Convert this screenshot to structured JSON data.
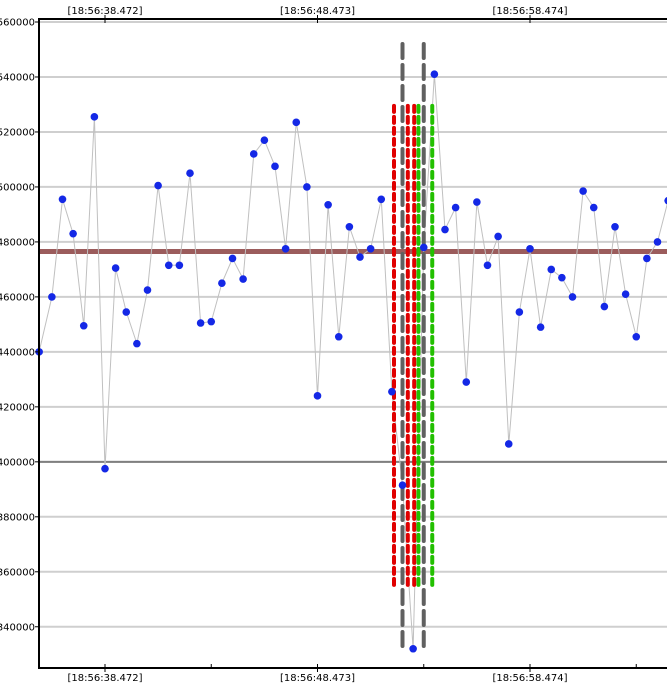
{
  "chart_data": {
    "type": "scatter",
    "title": "",
    "xlabel": "",
    "ylabel": "",
    "ylim": [
      325000,
      560000
    ],
    "yticks": [
      340000,
      360000,
      380000,
      400000,
      420000,
      440000,
      460000,
      480000,
      500000,
      520000,
      540000,
      560000
    ],
    "ytick_labels": [
      "340000",
      "360000",
      "380000",
      "400000",
      "420000",
      "440000",
      "460000",
      "480000",
      "500000",
      "520000",
      "540000",
      "560000"
    ],
    "x_time_labels": [
      "[18:56:38.472]",
      "[18:56:48.473]",
      "[18:56:58.474]"
    ],
    "x_unit": "seconds",
    "xlim": [
      -3.1,
      26.5
    ],
    "x_label_positions": [
      0,
      10,
      20
    ],
    "x_minor_ticks": [
      5,
      15,
      25
    ],
    "grid": true,
    "reference_lines": [
      {
        "name": "",
        "y": 476500,
        "color": "#9b5c5c",
        "style": "solid-thick"
      },
      {
        "name": "",
        "y": 400000,
        "color": "#808080",
        "style": "solid"
      }
    ],
    "series": [
      {
        "name": "",
        "color": "#1428e6",
        "line_color": "#c0c0c0",
        "points": [
          [
            -3.1,
            440000
          ],
          [
            -2.5,
            460000
          ],
          [
            -2.0,
            495500
          ],
          [
            -1.5,
            483000
          ],
          [
            -1.0,
            449500
          ],
          [
            -0.5,
            525500
          ],
          [
            0.0,
            397500
          ],
          [
            0.5,
            470500
          ],
          [
            1.0,
            454500
          ],
          [
            1.5,
            443000
          ],
          [
            2.0,
            462500
          ],
          [
            2.5,
            500500
          ],
          [
            3.0,
            471500
          ],
          [
            3.5,
            471500
          ],
          [
            4.0,
            505000
          ],
          [
            4.5,
            450500
          ],
          [
            5.0,
            451000
          ],
          [
            5.5,
            465000
          ],
          [
            6.0,
            474000
          ],
          [
            6.5,
            466500
          ],
          [
            7.0,
            512000
          ],
          [
            7.5,
            517000
          ],
          [
            8.0,
            507500
          ],
          [
            8.5,
            477500
          ],
          [
            9.0,
            523500
          ],
          [
            9.5,
            500000
          ],
          [
            10.0,
            424000
          ],
          [
            10.5,
            493500
          ],
          [
            11.0,
            445500
          ],
          [
            11.5,
            485500
          ],
          [
            12.0,
            474500
          ],
          [
            12.5,
            477500
          ],
          [
            13.0,
            495500
          ],
          [
            13.5,
            425500
          ],
          [
            14.0,
            391500
          ],
          [
            14.5,
            332000
          ],
          [
            15.0,
            478000
          ],
          [
            15.5,
            541000
          ],
          [
            16.0,
            484500
          ],
          [
            16.5,
            492500
          ],
          [
            17.0,
            429000
          ],
          [
            17.5,
            494500
          ],
          [
            18.0,
            471500
          ],
          [
            18.5,
            482000
          ],
          [
            19.0,
            406500
          ],
          [
            19.5,
            454500
          ],
          [
            20.0,
            477500
          ],
          [
            20.5,
            449000
          ],
          [
            21.0,
            470000
          ],
          [
            21.5,
            467000
          ],
          [
            22.0,
            460000
          ],
          [
            22.5,
            498500
          ],
          [
            23.0,
            492500
          ],
          [
            23.5,
            456500
          ],
          [
            24.0,
            485500
          ],
          [
            24.5,
            461000
          ],
          [
            25.0,
            445500
          ],
          [
            25.5,
            474000
          ],
          [
            26.0,
            480000
          ],
          [
            26.5,
            495000
          ]
        ]
      }
    ],
    "band_markers": [
      {
        "x": 13.6,
        "y_top": 529500,
        "y_bottom": 354000,
        "color": "#e00000",
        "style": "dashed"
      },
      {
        "x": 14.25,
        "y_top": 529500,
        "y_bottom": 354000,
        "color": "#e00000",
        "style": "dashed"
      },
      {
        "x": 14.55,
        "y_top": 529500,
        "y_bottom": 354000,
        "color": "#e00000",
        "style": "dashed"
      },
      {
        "x": 14.75,
        "y_top": 529500,
        "y_bottom": 354000,
        "color": "#22c000",
        "style": "dashed"
      },
      {
        "x": 15.4,
        "y_top": 529500,
        "y_bottom": 354000,
        "color": "#22c000",
        "style": "dashed"
      },
      {
        "x": 14.0,
        "y_top": 552000,
        "y_bottom": 332000,
        "color": "#606060",
        "style": "dashed-thick"
      },
      {
        "x": 15.0,
        "y_top": 552000,
        "y_bottom": 332000,
        "color": "#606060",
        "style": "dashed-thick"
      }
    ]
  }
}
